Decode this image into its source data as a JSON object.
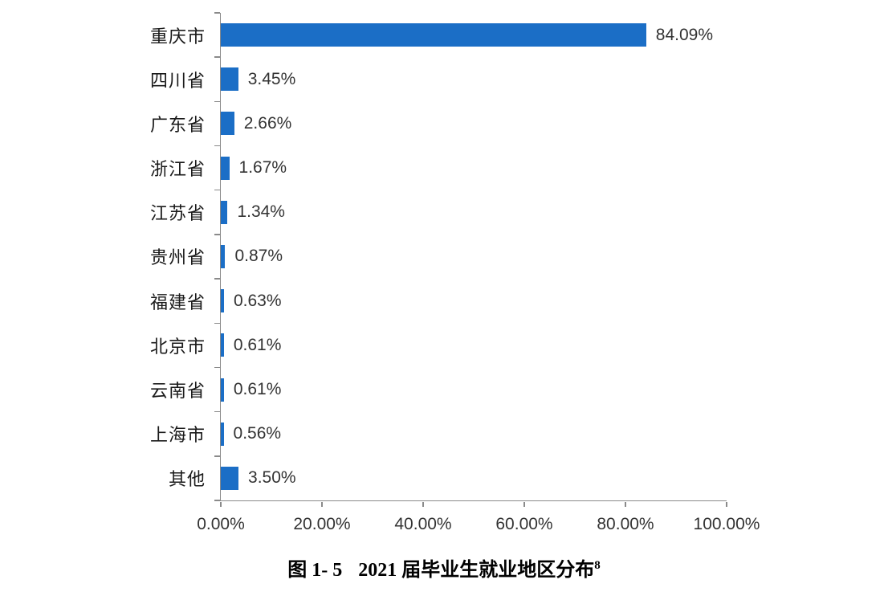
{
  "chart_data": {
    "type": "bar",
    "orientation": "horizontal",
    "title": "图 1- 5 2021 届毕业生就业地区分布",
    "xlabel": "",
    "ylabel": "",
    "categories": [
      "重庆市",
      "四川省",
      "广东省",
      "浙江省",
      "江苏省",
      "贵州省",
      "福建省",
      "北京市",
      "云南省",
      "上海市",
      "其他"
    ],
    "values": [
      84.09,
      3.45,
      2.66,
      1.67,
      1.34,
      0.87,
      0.63,
      0.61,
      0.61,
      0.56,
      3.5
    ],
    "value_labels": [
      "84.09%",
      "3.45%",
      "2.66%",
      "1.67%",
      "1.34%",
      "0.87%",
      "0.63%",
      "0.61%",
      "0.61%",
      "0.56%",
      "3.50%"
    ],
    "x_axis": {
      "range": [
        0,
        100
      ],
      "ticks": [
        0,
        20,
        40,
        60,
        80,
        100
      ],
      "tick_labels": [
        "0.00%",
        "20.00%",
        "40.00%",
        "60.00%",
        "80.00%",
        "100.00%"
      ]
    },
    "grid": false,
    "legend": false,
    "bar_color": "#1B6EC6",
    "axis_color": "#8A8A8A",
    "label_color": "#333333"
  },
  "caption": {
    "figure_label": "图 1- 5",
    "title": "2021 届毕业生就业地区分布",
    "footnote_marker": "8"
  }
}
